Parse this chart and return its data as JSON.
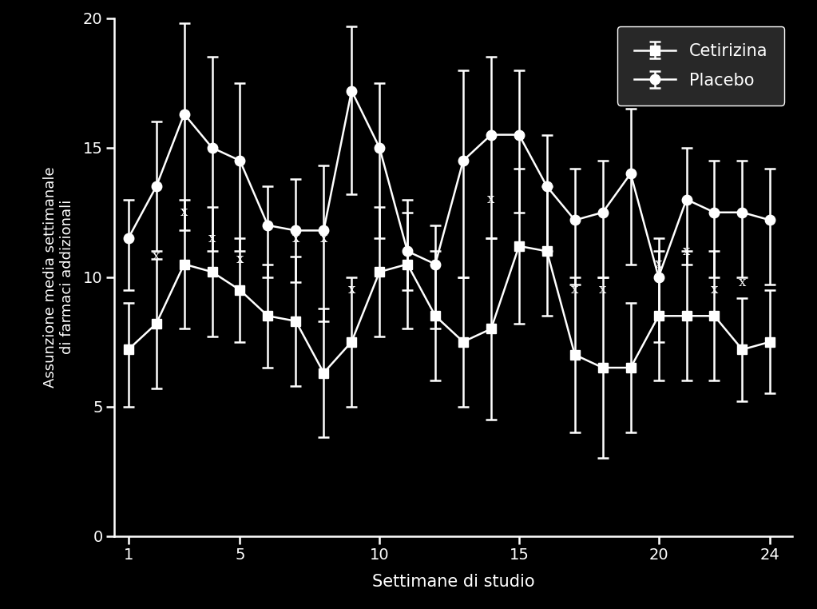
{
  "weeks": [
    1,
    2,
    3,
    4,
    5,
    6,
    7,
    8,
    9,
    10,
    11,
    12,
    13,
    14,
    15,
    16,
    17,
    18,
    19,
    20,
    21,
    22,
    23,
    24
  ],
  "cetirizina_y": [
    7.2,
    8.2,
    10.5,
    10.2,
    9.5,
    8.5,
    8.3,
    6.3,
    7.5,
    10.2,
    10.5,
    8.5,
    7.5,
    8.0,
    11.2,
    11.0,
    7.0,
    6.5,
    6.5,
    8.5,
    8.5,
    8.5,
    7.2,
    7.5
  ],
  "cetirizina_err_low": [
    2.2,
    2.5,
    2.5,
    2.5,
    2.0,
    2.0,
    2.5,
    2.5,
    2.5,
    2.5,
    2.5,
    2.5,
    2.5,
    3.5,
    3.0,
    2.5,
    3.0,
    3.5,
    2.5,
    2.5,
    2.5,
    2.5,
    2.0,
    2.0
  ],
  "cetirizina_err_high": [
    1.8,
    2.5,
    2.5,
    2.5,
    2.0,
    2.0,
    2.5,
    2.5,
    2.5,
    2.5,
    2.5,
    2.5,
    2.5,
    3.5,
    3.0,
    2.5,
    3.0,
    3.5,
    2.5,
    2.5,
    2.5,
    2.5,
    2.0,
    2.0
  ],
  "placebo_y": [
    11.5,
    13.5,
    16.3,
    15.0,
    14.5,
    12.0,
    11.8,
    11.8,
    17.2,
    15.0,
    11.0,
    10.5,
    14.5,
    15.5,
    15.5,
    13.5,
    12.2,
    12.5,
    14.0,
    10.0,
    13.0,
    12.5,
    12.5,
    12.2
  ],
  "placebo_err_low": [
    2.0,
    2.5,
    4.5,
    4.0,
    3.5,
    2.0,
    2.0,
    3.5,
    4.0,
    3.5,
    1.5,
    2.5,
    4.5,
    4.0,
    3.0,
    2.5,
    2.5,
    2.5,
    3.5,
    2.5,
    2.5,
    2.5,
    2.5,
    2.5
  ],
  "placebo_err_high": [
    1.5,
    2.5,
    3.5,
    3.5,
    3.0,
    1.5,
    2.0,
    2.5,
    2.5,
    2.5,
    1.5,
    1.5,
    3.5,
    3.0,
    2.5,
    2.0,
    2.0,
    2.0,
    2.5,
    1.5,
    2.0,
    2.0,
    2.0,
    2.0
  ],
  "x_markers_data": [
    [
      2,
      10.8
    ],
    [
      3,
      12.5
    ],
    [
      4,
      11.5
    ],
    [
      5,
      10.7
    ],
    [
      7,
      11.5
    ],
    [
      8,
      11.5
    ],
    [
      9,
      9.5
    ],
    [
      14,
      13.0
    ],
    [
      17,
      9.5
    ],
    [
      18,
      9.5
    ],
    [
      20,
      10.5
    ],
    [
      21,
      11.0
    ],
    [
      22,
      9.5
    ],
    [
      23,
      9.8
    ]
  ],
  "background_color": "#000000",
  "line_color": "#ffffff",
  "legend_bg": "#282828",
  "xlabel": "Settimane di studio",
  "ylabel": "Assunzione media settimanale\ndi farmaci addizionali",
  "ylim": [
    0,
    20
  ],
  "xlim": [
    0.5,
    24.8
  ],
  "xticks": [
    1,
    5,
    10,
    15,
    20,
    24
  ],
  "yticks": [
    0,
    5,
    10,
    15,
    20
  ],
  "legend_labels": [
    "Cetirizina",
    "Placebo"
  ]
}
